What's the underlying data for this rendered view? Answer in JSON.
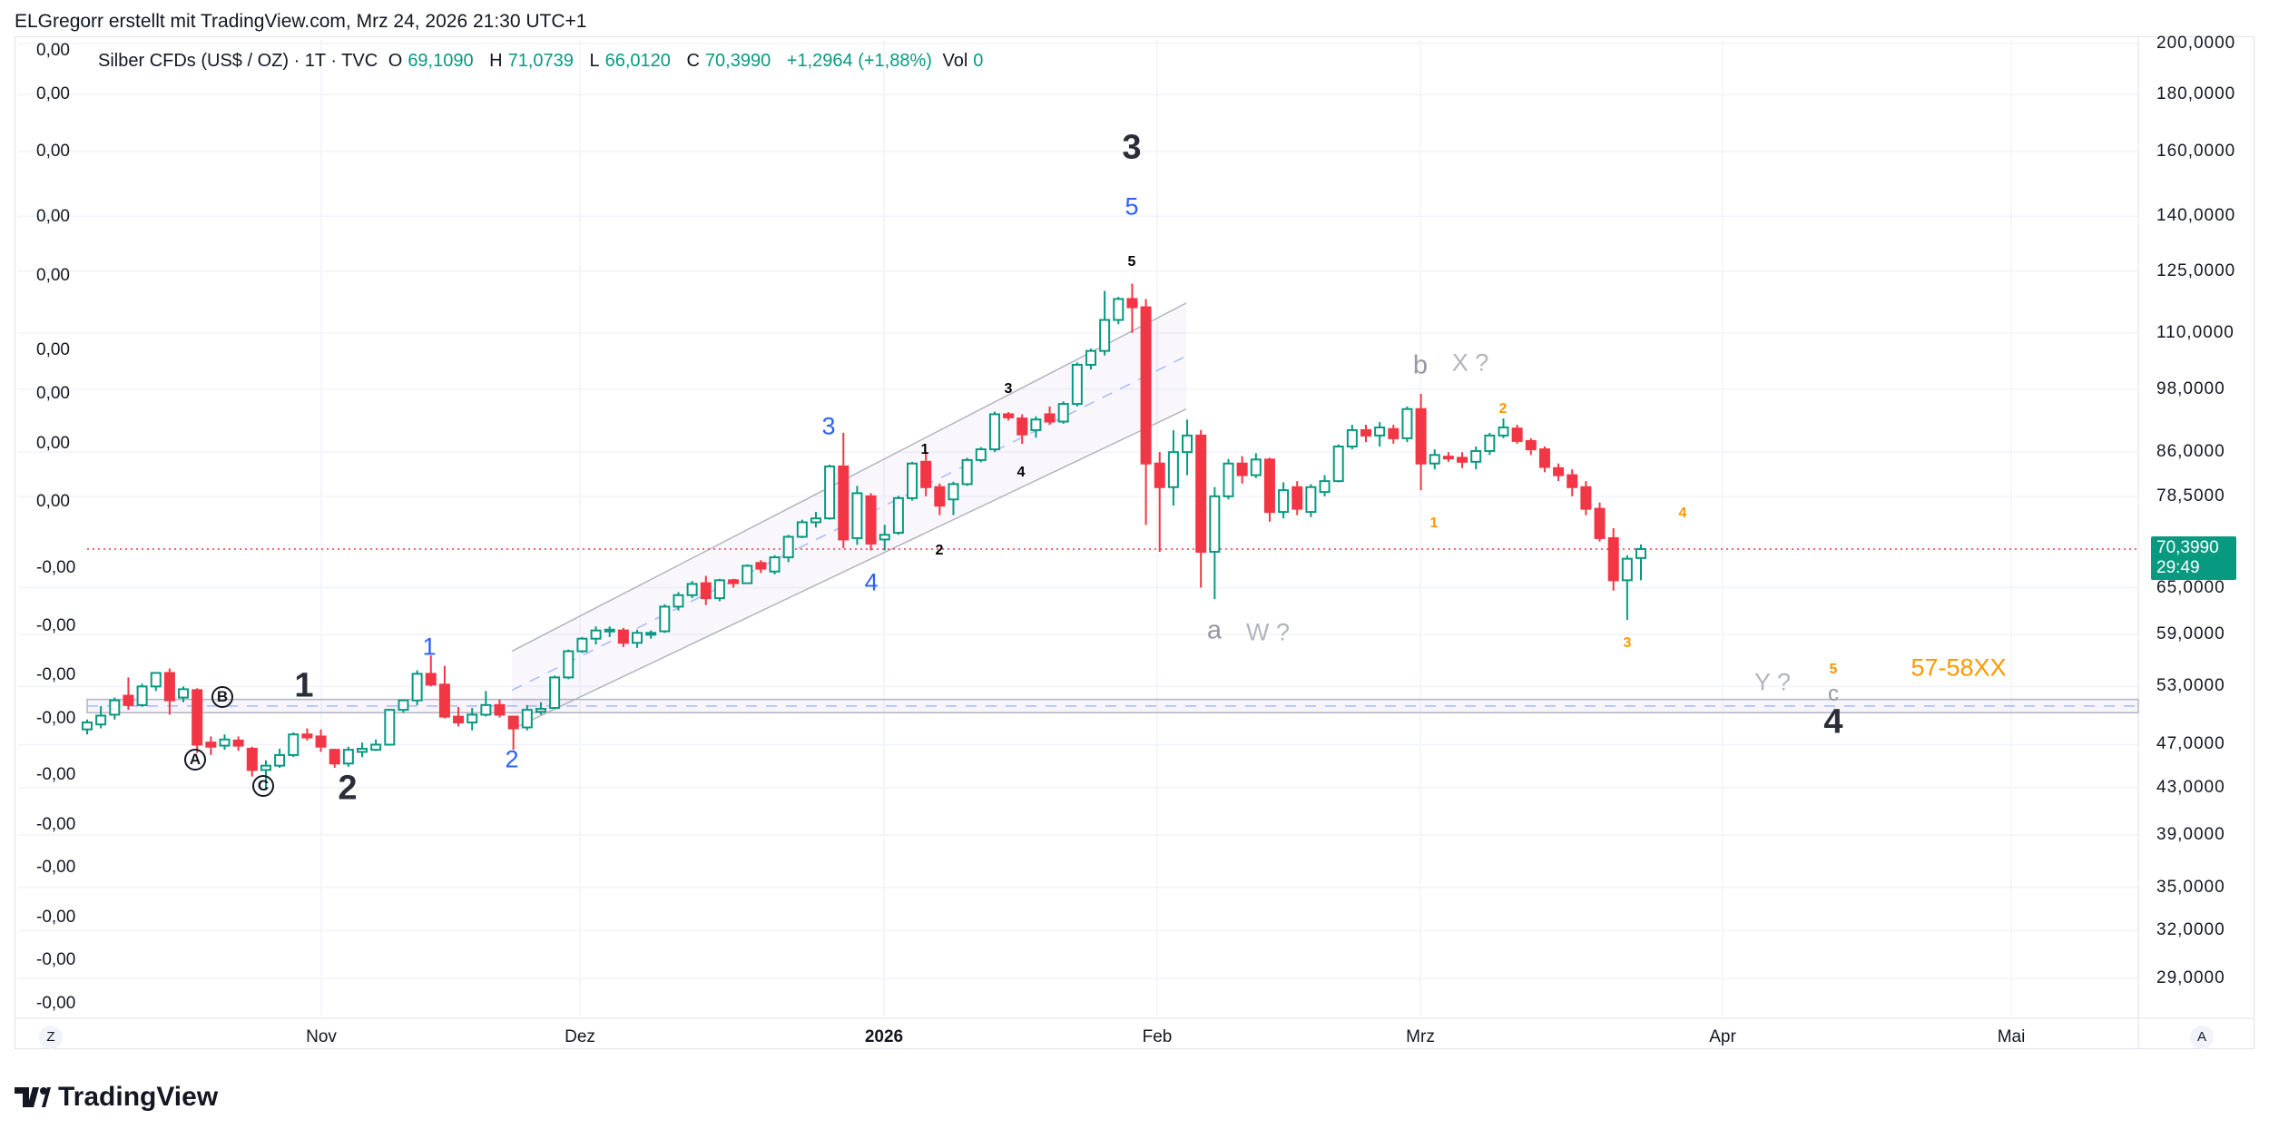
{
  "credit": "ELGregorr erstellt mit TradingView.com, Mrz 24, 2026 21:30 UTC+1",
  "legend": {
    "symbol": "Silber CFDs (US$ / OZ) · 1T · TVC",
    "o_label": "O",
    "o": "69,1090",
    "h_label": "H",
    "h": "71,0739",
    "l_label": "L",
    "l": "66,0120",
    "c_label": "C",
    "c": "70,3990",
    "change": "+1,2964 (+1,88%)",
    "vol_label": "Vol",
    "vol": "0"
  },
  "price_label": {
    "price": "70,3990",
    "countdown": "29:49"
  },
  "buttons": {
    "left": "Z",
    "right": "A"
  },
  "logo": "TradingView",
  "colors": {
    "up": "#089981",
    "down": "#f23645",
    "blue": "#2962ff",
    "orange": "#ff9800"
  },
  "left_axis": [
    "0,00",
    "0,00",
    "0,00",
    "0,00",
    "0,00",
    "0,00",
    "0,00",
    "0,00",
    "0,00",
    "-0,00",
    "-0,00",
    "-0,00",
    "-0,00",
    "-0,00",
    "-0,00",
    "-0,00",
    "-0,00",
    "-0,00",
    "-0,00"
  ],
  "annotations": {
    "primary": [
      "1",
      "2",
      "3",
      "4"
    ],
    "abc_circled": [
      "A",
      "B",
      "C"
    ],
    "blue": [
      "1",
      "2",
      "3",
      "4",
      "5"
    ],
    "small": [
      "1",
      "2",
      "3",
      "4",
      "5"
    ],
    "grey": {
      "a": "a",
      "w": "W ?",
      "b": "b",
      "x": "X ?",
      "y": "Y ?",
      "c": "c"
    },
    "orange": [
      "1",
      "2",
      "3",
      "4",
      "5"
    ],
    "target": "57-58XX"
  },
  "chart_data": {
    "type": "candlestick",
    "title": "Silber CFDs (US$ / OZ) · 1T · TVC",
    "yscale": "log",
    "ylim": [
      29,
      200
    ],
    "y_ticks": [
      "200,0000",
      "180,0000",
      "160,0000",
      "140,0000",
      "125,0000",
      "110,0000",
      "98,0000",
      "86,0000",
      "78,5000",
      "65,0000",
      "59,0000",
      "53,0000",
      "47,0000",
      "43,0000",
      "39,0000",
      "35,0000",
      "32,0000",
      "29,0000"
    ],
    "y_tick_values": [
      200,
      180,
      160,
      140,
      125,
      110,
      98,
      86,
      78.5,
      65,
      59,
      53,
      47,
      43,
      39,
      35,
      32,
      29
    ],
    "x_ticks": [
      "Nov",
      "Dez",
      "2026",
      "Feb",
      "Mrz",
      "Apr",
      "Mai"
    ],
    "last_price": 70.399,
    "zone": {
      "low": 50.2,
      "high": 51.6,
      "mid": 50.9
    },
    "channel": {
      "start_low": 48.5,
      "start_high": 57.0,
      "end_low": 94.0,
      "end_high": 117.0
    },
    "ohlc": [
      [
        48.5,
        49.5,
        48,
        49.2
      ],
      [
        49,
        50.9,
        48.6,
        49.9
      ],
      [
        50,
        51.8,
        49.5,
        51.5
      ],
      [
        52,
        54,
        50.5,
        51
      ],
      [
        51,
        53.3,
        50.8,
        53
      ],
      [
        53,
        54.6,
        52.5,
        54.5
      ],
      [
        54.5,
        55,
        50,
        51.5
      ],
      [
        51.8,
        53,
        51.3,
        52.7
      ],
      [
        52.6,
        52.8,
        46.2,
        47
      ],
      [
        47.2,
        47.8,
        46,
        46.8
      ],
      [
        46.9,
        48,
        46.5,
        47.5
      ],
      [
        47.4,
        47.8,
        46.4,
        46.9
      ],
      [
        46.6,
        46.8,
        44,
        44.6
      ],
      [
        44.6,
        45.5,
        42.8,
        45
      ],
      [
        45,
        46.6,
        44.8,
        46
      ],
      [
        46,
        48.2,
        45.8,
        48
      ],
      [
        48,
        48.6,
        47.4,
        47.7
      ],
      [
        47.8,
        48.5,
        46.3,
        46.8
      ],
      [
        46.5,
        46.6,
        44.8,
        45.2
      ],
      [
        45.2,
        46.8,
        44.9,
        46.5
      ],
      [
        46.3,
        47.2,
        45.8,
        46.6
      ],
      [
        46.5,
        47.5,
        46.4,
        47
      ],
      [
        47,
        50.6,
        46.9,
        50.5
      ],
      [
        50.5,
        51.6,
        50.2,
        51.5
      ],
      [
        51.5,
        54.8,
        51,
        54.4
      ],
      [
        54.4,
        56.5,
        53,
        53.2
      ],
      [
        53.2,
        55.3,
        49.6,
        49.8
      ],
      [
        49.8,
        50.8,
        48.8,
        49.2
      ],
      [
        49.2,
        50.7,
        48.4,
        50
      ],
      [
        50,
        52.5,
        49.8,
        51
      ],
      [
        51,
        51.6,
        49.7,
        50
      ],
      [
        49.8,
        49.9,
        46.5,
        48.6
      ],
      [
        48.7,
        51,
        48.4,
        50.5
      ],
      [
        50.3,
        51.3,
        50,
        50.6
      ],
      [
        50.7,
        54.2,
        50.6,
        54
      ],
      [
        54,
        57.2,
        53.8,
        57
      ],
      [
        57,
        58.7,
        56.8,
        58.5
      ],
      [
        58.5,
        60,
        57.8,
        59.5
      ],
      [
        59.4,
        60,
        58.7,
        59.6
      ],
      [
        59.5,
        59.8,
        57.5,
        58
      ],
      [
        58,
        59.6,
        57.4,
        59.2
      ],
      [
        59.2,
        59.5,
        58.5,
        59.2
      ],
      [
        59.4,
        62.8,
        59.2,
        62.5
      ],
      [
        62.5,
        64.4,
        62,
        64
      ],
      [
        64,
        65.9,
        63.6,
        65.5
      ],
      [
        65.6,
        66.6,
        62.7,
        63.6
      ],
      [
        63.6,
        66.2,
        63.2,
        66
      ],
      [
        66,
        66.2,
        65,
        65.6
      ],
      [
        65.6,
        68.2,
        65.5,
        68
      ],
      [
        68.4,
        68.8,
        67,
        67.6
      ],
      [
        67.2,
        69.5,
        66.8,
        69.2
      ],
      [
        69.2,
        72.5,
        68.5,
        72.2
      ],
      [
        72.2,
        74.8,
        72,
        74.4
      ],
      [
        74.4,
        76,
        73.6,
        75
      ],
      [
        75,
        83.8,
        74.8,
        83.5
      ],
      [
        83.5,
        89.5,
        70.5,
        71.8
      ],
      [
        72,
        80.2,
        71,
        79
      ],
      [
        78.5,
        79,
        70.2,
        71.2
      ],
      [
        71.8,
        74,
        70.2,
        72.5
      ],
      [
        72.8,
        78.6,
        72.5,
        78.2
      ],
      [
        78.2,
        84.3,
        77.8,
        84
      ],
      [
        84.3,
        86,
        78.5,
        80
      ],
      [
        80,
        80.6,
        75.5,
        77
      ],
      [
        78,
        80.9,
        75.5,
        80.5
      ],
      [
        80.5,
        85,
        80.2,
        84.6
      ],
      [
        84.6,
        86.9,
        84.2,
        86.5
      ],
      [
        86.5,
        93.5,
        86,
        93
      ],
      [
        93,
        93.4,
        91.8,
        92.4
      ],
      [
        92.2,
        93,
        87.5,
        89.2
      ],
      [
        90,
        92.6,
        88.6,
        92
      ],
      [
        93,
        94.5,
        91,
        91.6
      ],
      [
        91.6,
        95.5,
        91.2,
        95
      ],
      [
        95,
        103.5,
        94.5,
        103
      ],
      [
        103,
        106.5,
        102,
        106
      ],
      [
        106,
        120,
        105,
        113
      ],
      [
        113,
        118.5,
        112,
        118
      ],
      [
        118,
        121.8,
        110,
        116
      ],
      [
        116,
        118,
        74,
        84
      ],
      [
        84,
        86,
        70,
        80
      ],
      [
        80,
        90,
        77,
        86
      ],
      [
        86,
        92,
        82,
        89
      ],
      [
        89,
        90,
        65,
        70
      ],
      [
        70,
        80,
        63.5,
        78.5
      ],
      [
        78.5,
        84.8,
        78,
        84
      ],
      [
        84,
        85.3,
        80.6,
        82
      ],
      [
        82,
        85.8,
        81.5,
        84.7
      ],
      [
        84.7,
        85,
        74.5,
        76
      ],
      [
        76,
        80.8,
        75,
        79.5
      ],
      [
        80,
        81,
        75.5,
        76.5
      ],
      [
        76,
        80.5,
        75.2,
        80
      ],
      [
        79.2,
        82,
        78.5,
        81
      ],
      [
        81,
        87.4,
        80.8,
        87
      ],
      [
        87,
        91,
        86.5,
        90
      ],
      [
        90,
        91,
        87.8,
        89
      ],
      [
        89,
        91.5,
        87,
        90.5
      ],
      [
        90.2,
        91,
        87.5,
        88.5
      ],
      [
        88.5,
        94.5,
        87.8,
        94
      ],
      [
        94,
        97,
        79.5,
        84
      ],
      [
        84,
        86.5,
        83,
        85.5
      ],
      [
        85.2,
        86,
        84.3,
        85
      ],
      [
        85,
        86,
        83.2,
        84.3
      ],
      [
        84.3,
        87,
        83,
        86.2
      ],
      [
        86.2,
        89.5,
        85.5,
        89
      ],
      [
        89,
        92.2,
        88.5,
        90.5
      ],
      [
        90.3,
        91,
        87.5,
        88
      ],
      [
        88,
        88.5,
        85.5,
        86.5
      ],
      [
        86.5,
        87,
        82.5,
        83.4
      ],
      [
        83.2,
        84,
        81,
        82
      ],
      [
        82,
        83,
        78.5,
        80
      ],
      [
        80,
        81,
        75.5,
        76.5
      ],
      [
        76.5,
        77.5,
        71.5,
        72
      ],
      [
        72,
        73.5,
        64.6,
        66
      ],
      [
        66,
        69.5,
        60.8,
        69
      ],
      [
        69.1,
        71.07,
        66.01,
        70.399
      ]
    ]
  }
}
